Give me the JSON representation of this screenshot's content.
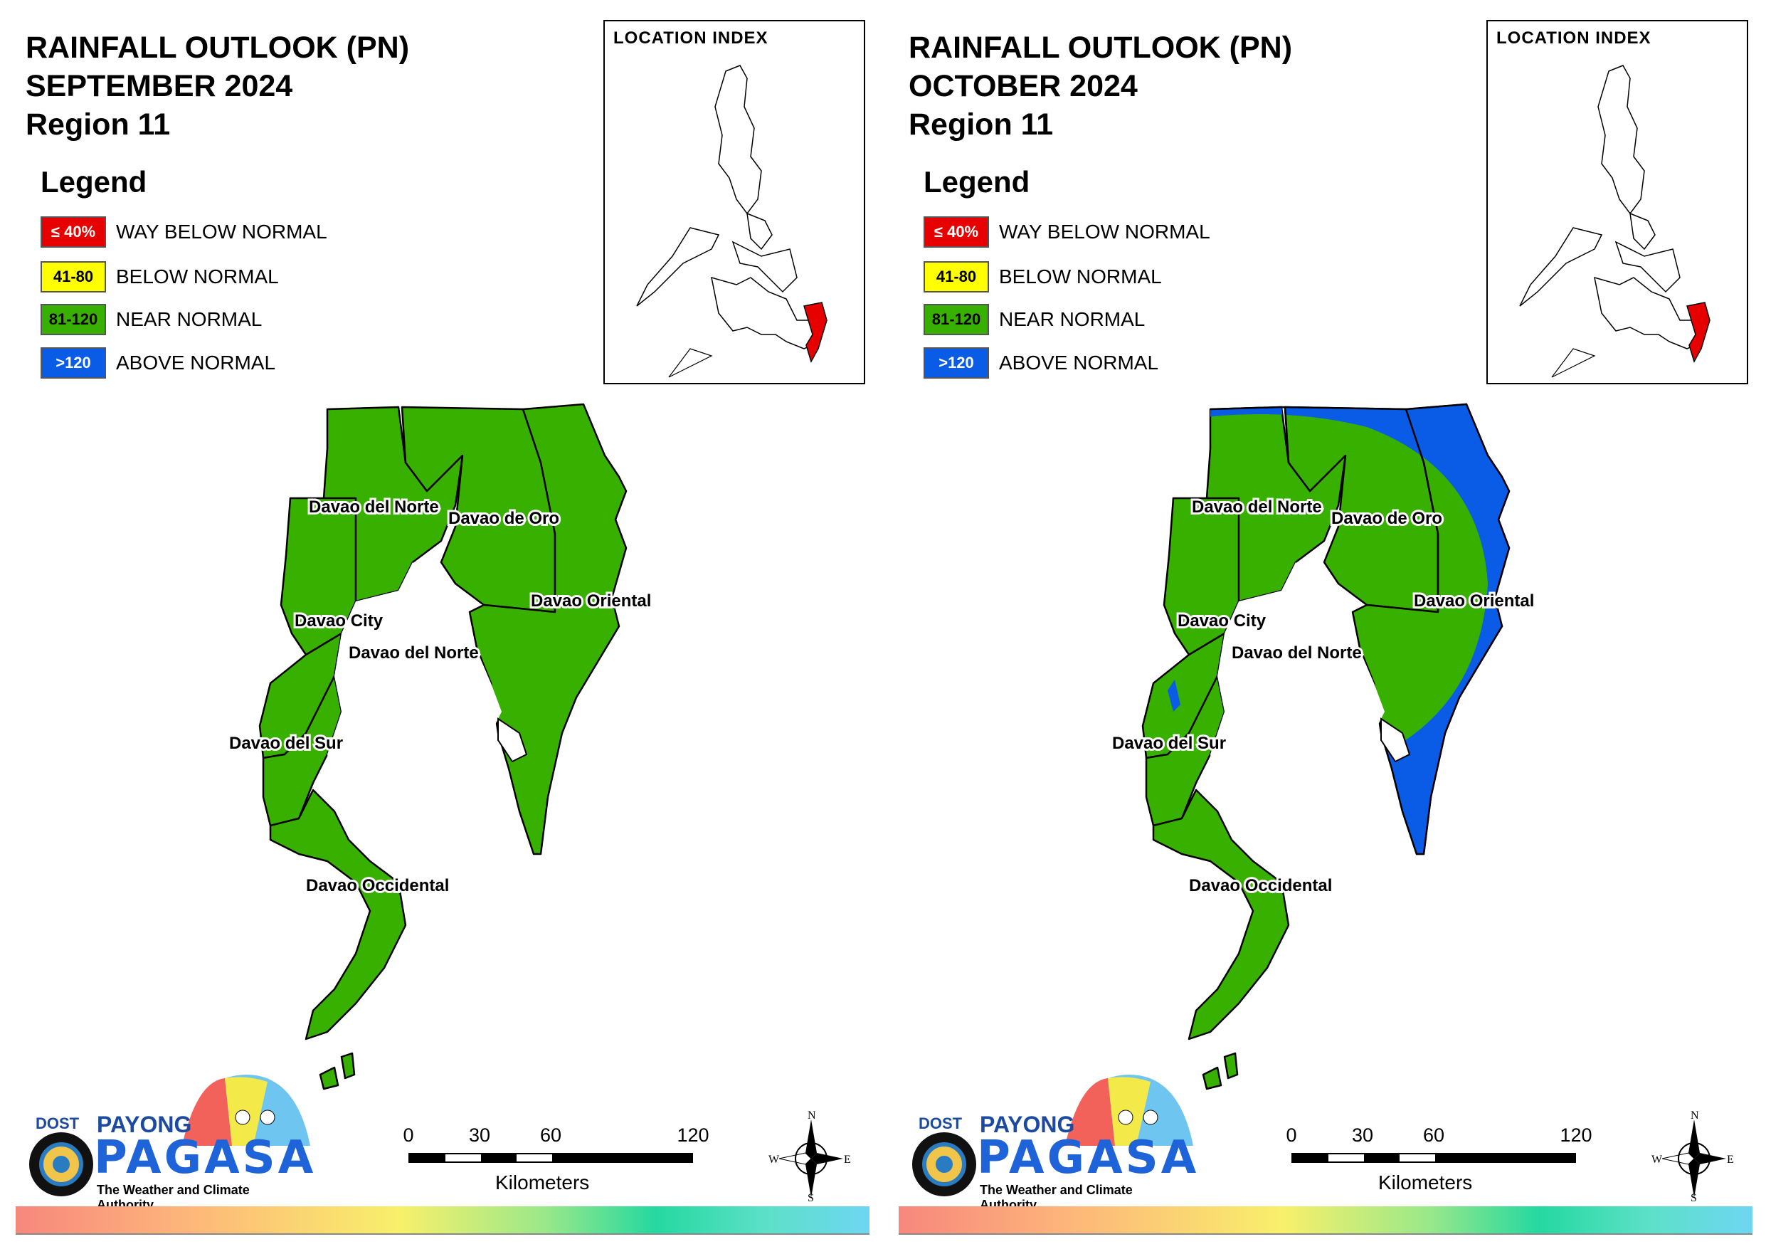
{
  "panels": [
    {
      "title_line1": "RAINFALL OUTLOOK (PN)",
      "title_line2": "SEPTEMBER 2024",
      "title_line3": "Region 11",
      "location_index_title": "LOCATION INDEX"
    },
    {
      "title_line1": "RAINFALL OUTLOOK (PN)",
      "title_line2": "OCTOBER 2024",
      "title_line3": "Region 11",
      "location_index_title": "LOCATION INDEX"
    }
  ],
  "legend": {
    "title": "Legend",
    "items": [
      {
        "swatch": "≤ 40%",
        "label": "WAY BELOW NORMAL",
        "color": "#e60000",
        "text_color": "#ffffff"
      },
      {
        "swatch": "41-80",
        "label": "BELOW NORMAL",
        "color": "#ffff00",
        "text_color": "#000000"
      },
      {
        "swatch": "81-120",
        "label": "NEAR NORMAL",
        "color": "#38b000",
        "text_color": "#000000"
      },
      {
        "swatch": ">120",
        "label": "ABOVE NORMAL",
        "color": "#0a5ce6",
        "text_color": "#ffffff"
      }
    ]
  },
  "provinces": {
    "davao_del_norte_a": "Davao del Norte",
    "davao_de_oro": "Davao de Oro",
    "davao_oriental": "Davao Oriental",
    "davao_city": "Davao City",
    "davao_del_norte_b": "Davao del Norte",
    "davao_del_sur": "Davao del Sur",
    "davao_occidental": "Davao Occidental"
  },
  "scale": {
    "ticks": [
      "0",
      "30",
      "60",
      "120"
    ],
    "unit": "Kilometers"
  },
  "compass": {
    "n": "N",
    "s": "S",
    "e": "E",
    "w": "W"
  },
  "logo": {
    "dost": "DOST",
    "payong": "PAYONG",
    "pagasa": "PAGASA",
    "tagline": "The Weather and Climate Authority"
  },
  "colors": {
    "near_normal": "#38b000",
    "above_normal": "#0a5ce6",
    "region_highlight": "#e60000"
  }
}
